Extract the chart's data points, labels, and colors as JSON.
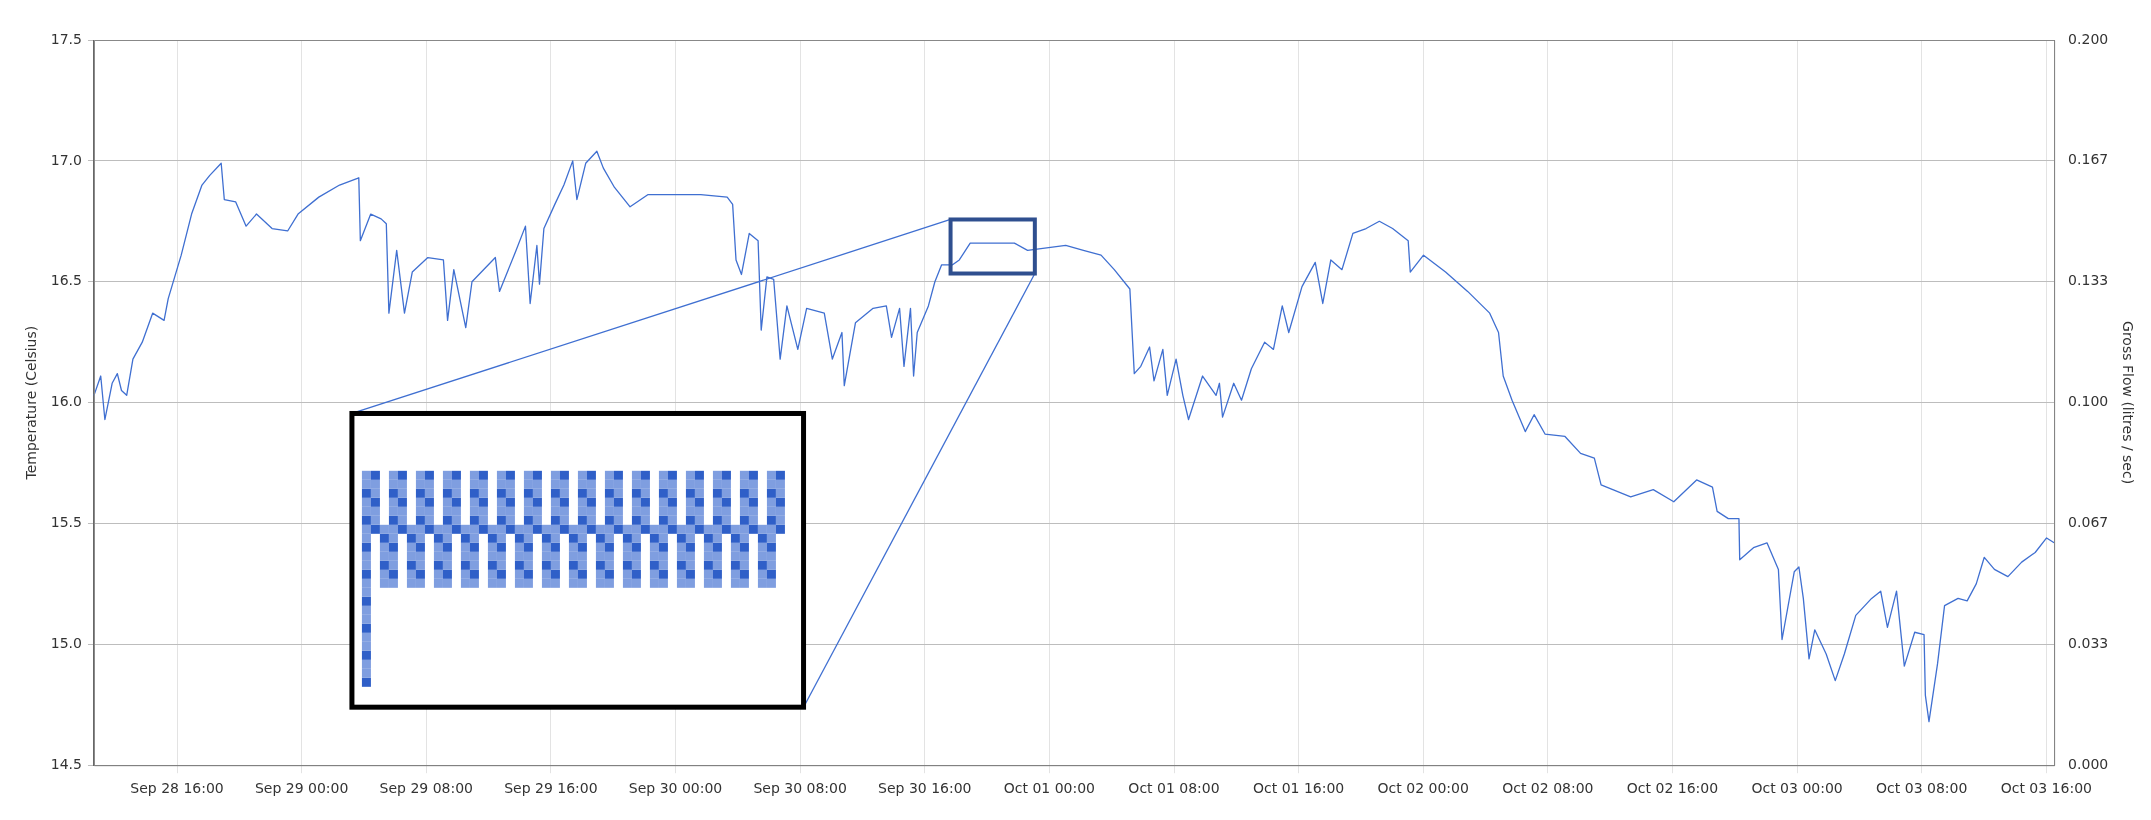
{
  "chart_data": [
    {
      "type": "line",
      "ylabel": "Temperature (Celsius)",
      "y2label": "Gross Flow (litres / sec)",
      "xlim": [
        "--09-28T10:40",
        "--10-03T16:30"
      ],
      "xticks": [
        {
          "value": "--09-28T16:00",
          "label": "Sep 28 16:00"
        },
        {
          "value": "--09-29T00:00",
          "label": "Sep 29 00:00"
        },
        {
          "value": "--09-29T08:00",
          "label": "Sep 29 08:00"
        },
        {
          "value": "--09-29T16:00",
          "label": "Sep 29 16:00"
        },
        {
          "value": "--09-30T00:00",
          "label": "Sep 30 00:00"
        },
        {
          "value": "--09-30T08:00",
          "label": "Sep 30 08:00"
        },
        {
          "value": "--09-30T16:00",
          "label": "Sep 30 16:00"
        },
        {
          "value": "--10-01T00:00",
          "label": "Oct 01 00:00"
        },
        {
          "value": "--10-01T08:00",
          "label": "Oct 01 08:00"
        },
        {
          "value": "--10-01T16:00",
          "label": "Oct 01 16:00"
        },
        {
          "value": "--10-02T00:00",
          "label": "Oct 02 00:00"
        },
        {
          "value": "--10-02T08:00",
          "label": "Oct 02 08:00"
        },
        {
          "value": "--10-02T16:00",
          "label": "Oct 02 16:00"
        },
        {
          "value": "--10-03T00:00",
          "label": "Oct 03 00:00"
        },
        {
          "value": "--10-03T08:00",
          "label": "Oct 03 08:00"
        },
        {
          "value": "--10-03T16:00",
          "label": "Oct 03 16:00"
        }
      ],
      "ylim": [
        14.5,
        17.5
      ],
      "yticks": [
        {
          "value": 14.5,
          "label": "14.5"
        },
        {
          "value": 15,
          "label": "15.0"
        },
        {
          "value": 15.5,
          "label": "15.5"
        },
        {
          "value": 16,
          "label": "16.0"
        },
        {
          "value": 16.5,
          "label": "16.5"
        },
        {
          "value": 17,
          "label": "17.0"
        },
        {
          "value": 17.5,
          "label": "17.5"
        }
      ],
      "y2lim": [
        0,
        0.2
      ],
      "y2ticks": [
        {
          "value": 0,
          "label": "0.000"
        },
        {
          "value": 0.0333,
          "label": "0.033"
        },
        {
          "value": 0.0667,
          "label": "0.067"
        },
        {
          "value": 0.1,
          "label": "0.100"
        },
        {
          "value": 0.1333,
          "label": "0.133"
        },
        {
          "value": 0.1667,
          "label": "0.167"
        },
        {
          "value": 0.2,
          "label": "0.200"
        }
      ],
      "grid": true,
      "marker": "none",
      "line_style": "solid",
      "series": [
        {
          "color": "#3f6fd1",
          "x": [
            "--09-28T10:40",
            "--09-28T11:06",
            "--09-28T11:22",
            "--09-28T11:50",
            "--09-28T12:10",
            "--09-28T12:26",
            "--09-28T12:46",
            "--09-28T13:10",
            "--09-28T13:46",
            "--09-28T14:26",
            "--09-28T15:10",
            "--09-28T15:26",
            "--09-28T16:16",
            "--09-28T16:56",
            "--09-28T17:36",
            "--09-28T18:06",
            "--09-28T18:50",
            "--09-28T19:02",
            "--09-28T19:46",
            "--09-28T20:26",
            "--09-28T21:06",
            "--09-28T22:06",
            "--09-28T23:06",
            "--09-28T23:46",
            "--09-29T01:06",
            "--09-29T02:26",
            "--09-29T03:40",
            "--09-29T03:46",
            "--09-29T04:26",
            "--09-29T05:06",
            "--09-29T05:26",
            "--09-29T05:36",
            "--09-29T06:06",
            "--09-29T06:36",
            "--09-29T07:06",
            "--09-29T08:06",
            "--09-29T09:06",
            "--09-29T09:22",
            "--09-29T09:46",
            "--09-29T10:32",
            "--09-29T10:56",
            "--09-29T12:26",
            "--09-29T12:42",
            "--09-29T13:46",
            "--09-29T14:22",
            "--09-29T14:40",
            "--09-29T15:06",
            "--09-29T15:16",
            "--09-29T15:33",
            "--09-29T16:15",
            "--09-29T16:50",
            "--09-29T17:24",
            "--09-29T17:40",
            "--09-29T18:14",
            "--09-29T18:57",
            "--09-29T19:22",
            "--09-29T20:05",
            "--09-29T21:05",
            "--09-29T22:13",
            "--09-29T23:55",
            "--09-30T01:37",
            "--09-30T03:19",
            "--09-30T03:40",
            "--09-30T03:53",
            "--09-30T04:14",
            "--09-30T04:44",
            "--09-30T05:18",
            "--09-30T05:30",
            "--09-30T05:52",
            "--09-30T06:18",
            "--09-30T06:43",
            "--09-30T07:09",
            "--09-30T07:51",
            "--09-30T08:25",
            "--09-30T09:33",
            "--09-30T10:04",
            "--09-30T10:41",
            "--09-30T10:50",
            "--09-30T11:33",
            "--09-30T12:41",
            "--09-30T13:32",
            "--09-30T13:52",
            "--09-30T14:23",
            "--09-30T14:40",
            "--09-30T15:05",
            "--09-30T15:17",
            "--09-30T15:31",
            "--09-30T16:14",
            "--09-30T16:39",
            "--09-30T17:05",
            "--09-30T17:47",
            "--09-30T18:13",
            "--09-30T18:55",
            "--09-30T19:29",
            "--09-30T20:37",
            "--09-30T21:45",
            "--09-30T22:36",
            "--10-01T01:03",
            "--10-01T02:11",
            "--10-01T03:19",
            "--10-01T04:10",
            "--10-01T05:10",
            "--10-01T05:27",
            "--10-01T05:52",
            "--10-01T06:26",
            "--10-01T06:43",
            "--10-01T07:17",
            "--10-01T07:34",
            "--10-01T08:08",
            "--10-01T08:34",
            "--10-01T08:56",
            "--10-01T09:50",
            "--10-01T10:42",
            "--10-01T10:55",
            "--10-01T11:07",
            "--10-01T11:50",
            "--10-01T12:20",
            "--10-01T12:58",
            "--10-01T13:49",
            "--10-01T14:23",
            "--10-01T14:57",
            "--10-01T15:22",
            "--10-01T16:13",
            "--10-01T17:04",
            "--10-01T17:33",
            "--10-01T18:04",
            "--10-01T18:47",
            "--10-01T19:29",
            "--10-01T20:20",
            "--10-01T21:11",
            "--10-01T22:02",
            "--10-01T23:02",
            "--10-01T23:10",
            "--10-02T00:01",
            "--10-02T01:26",
            "--10-02T02:51",
            "--10-02T04:16",
            "--10-02T04:50",
            "--10-02T05:08",
            "--10-02T05:42",
            "--10-02T06:33",
            "--10-02T07:07",
            "--10-02T07:49",
            "--10-02T09:06",
            "--10-02T10:06",
            "--10-02T10:59",
            "--10-02T11:25",
            "--10-02T13:19",
            "--10-02T14:46",
            "--10-02T16:05",
            "--10-02T17:33",
            "--10-02T18:34",
            "--10-02T18:52",
            "--10-02T19:35",
            "--10-02T20:16",
            "--10-02T20:19",
            "--10-02T21:12",
            "--10-02T22:04",
            "--10-02T22:48",
            "--10-02T23:02",
            "--10-02T23:49",
            "--10-03T00:07",
            "--10-03T00:24",
            "--10-03T00:46",
            "--10-03T01:08",
            "--10-03T01:52",
            "--10-03T02:27",
            "--10-03T03:02",
            "--10-03T03:46",
            "--10-03T04:47",
            "--10-03T05:22",
            "--10-03T05:48",
            "--10-03T06:23",
            "--10-03T06:53",
            "--10-03T07:33",
            "--10-03T08:09",
            "--10-03T08:14",
            "--10-03T08:28",
            "--10-03T09:01",
            "--10-03T09:28",
            "--10-03T10:20",
            "--10-03T10:55",
            "--10-03T11:30",
            "--10-03T12:01",
            "--10-03T12:40",
            "--10-03T13:32",
            "--10-03T14:25",
            "--10-03T15:17",
            "--10-03T16:01",
            "--10-03T16:30"
          ],
          "values": [
            16.03,
            16.11,
            15.93,
            16.08,
            16.12,
            16.05,
            16.03,
            16.18,
            16.25,
            16.37,
            16.34,
            16.43,
            16.61,
            16.78,
            16.9,
            16.94,
            16.99,
            16.84,
            16.83,
            16.73,
            16.78,
            16.72,
            16.71,
            16.78,
            16.85,
            16.9,
            16.93,
            16.67,
            16.78,
            16.76,
            16.74,
            16.37,
            16.63,
            16.37,
            16.54,
            16.6,
            16.59,
            16.34,
            16.55,
            16.31,
            16.5,
            16.6,
            16.46,
            16.63,
            16.73,
            16.41,
            16.65,
            16.49,
            16.72,
            16.82,
            16.9,
            17.0,
            16.84,
            16.99,
            17.04,
            16.97,
            16.89,
            16.81,
            16.86,
            16.86,
            16.86,
            16.85,
            16.82,
            16.59,
            16.53,
            16.7,
            16.67,
            16.3,
            16.52,
            16.51,
            16.18,
            16.4,
            16.22,
            16.39,
            16.37,
            16.18,
            16.29,
            16.07,
            16.33,
            16.39,
            16.4,
            16.27,
            16.39,
            16.15,
            16.39,
            16.11,
            16.29,
            16.4,
            16.5,
            16.57,
            16.57,
            16.59,
            16.66,
            16.66,
            16.66,
            16.66,
            16.63,
            16.65,
            16.63,
            16.61,
            16.55,
            16.47,
            16.12,
            16.15,
            16.23,
            16.09,
            16.22,
            16.03,
            16.18,
            16.03,
            15.93,
            16.11,
            16.03,
            16.08,
            15.94,
            16.08,
            16.01,
            16.14,
            16.25,
            16.22,
            16.4,
            16.29,
            16.48,
            16.58,
            16.41,
            16.59,
            16.55,
            16.7,
            16.72,
            16.75,
            16.72,
            16.67,
            16.54,
            16.61,
            16.54,
            16.46,
            16.37,
            16.29,
            16.11,
            16.01,
            15.88,
            15.95,
            15.87,
            15.86,
            15.79,
            15.77,
            15.66,
            15.61,
            15.64,
            15.59,
            15.68,
            15.65,
            15.55,
            15.52,
            15.52,
            15.35,
            15.4,
            15.42,
            15.31,
            15.02,
            15.3,
            15.32,
            15.19,
            14.94,
            15.06,
            14.96,
            14.85,
            14.96,
            15.12,
            15.19,
            15.22,
            15.07,
            15.22,
            14.91,
            15.05,
            15.04,
            14.79,
            14.68,
            14.92,
            15.16,
            15.19,
            15.18,
            15.25,
            15.36,
            15.31,
            15.28,
            15.34,
            15.38,
            15.44,
            15.42
          ]
        }
      ]
    }
  ]
}
